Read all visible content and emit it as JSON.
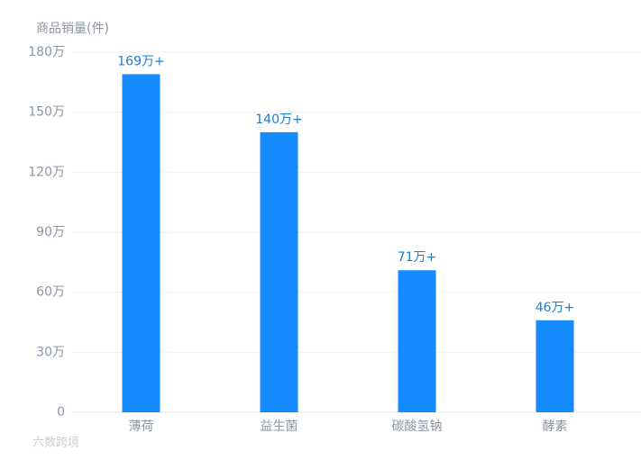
{
  "chart_data": {
    "type": "bar",
    "y_label": "商品销量(件)",
    "categories": [
      "薄荷",
      "益生菌",
      "碳酸氢钠",
      "酵素"
    ],
    "values": [
      169,
      140,
      71,
      46
    ],
    "value_labels": [
      "169万+",
      "140万+",
      "71万+",
      "46万+"
    ],
    "color": "#148bff",
    "ylim": [
      0,
      180
    ],
    "yticks": [
      0,
      {
        "value": 30,
        "label": "30万"
      },
      {
        "value": 60,
        "label": "60万"
      },
      {
        "value": 90,
        "label": "90万"
      },
      {
        "value": 120,
        "label": "120万"
      },
      {
        "value": 150,
        "label": "150万"
      },
      {
        "value": 180,
        "label": "180万"
      }
    ],
    "grid": true
  },
  "watermark": "六数跨境"
}
